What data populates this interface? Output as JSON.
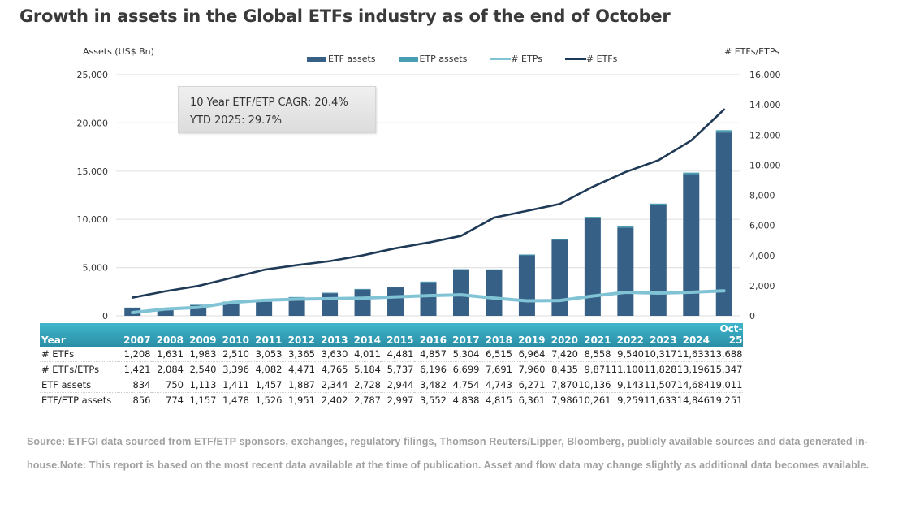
{
  "page": {
    "title": "Growth in assets in the Global ETFs industry as of the end of October",
    "annotation": {
      "line1": "10 Year ETF/ETP CAGR: 20.4%",
      "line2": "YTD 2025: 29.7%"
    },
    "source_text": "Source: ETFGI data sourced from ETF/ETP sponsors, exchanges, regulatory filings, Thomson Reuters/Lipper, Bloomberg, publicly available sources and data generated in-house.Note: This report is based on the most recent data available at the time of publication. Asset and flow data may change slightly as additional data becomes available."
  },
  "colors": {
    "etf_assets": "#376086",
    "etp_assets": "#4a9eb3",
    "etps_line": "#80c3d5",
    "etfs_line": "#1f3a57",
    "table_header": "#3aa9c0",
    "gridline": "#e3e3e3"
  },
  "chart_data": {
    "type": "bar",
    "title": "Growth in assets in the Global ETFs industry as of the end of October",
    "categories": [
      "2007",
      "2008",
      "2009",
      "2010",
      "2011",
      "2012",
      "2013",
      "2014",
      "2015",
      "2016",
      "2017",
      "2018",
      "2019",
      "2020",
      "2021",
      "2022",
      "2023",
      "2024",
      "Oct-25"
    ],
    "ylabel": "Assets (US$ Bn)",
    "y2label": "# ETFs/ETPs",
    "ylim": [
      0,
      25000
    ],
    "y2lim": [
      0,
      16000
    ],
    "yticks": [
      "0",
      "5,000",
      "10,000",
      "15,000",
      "20,000",
      "25,000"
    ],
    "y2ticks": [
      "0",
      "2,000",
      "4,000",
      "6,000",
      "8,000",
      "10,000",
      "12,000",
      "14,000",
      "16,000"
    ],
    "grid": true,
    "legend_position": "top",
    "series": [
      {
        "name": "ETF assets",
        "type": "bar",
        "axis": "left",
        "values": [
          834,
          750,
          1113,
          1411,
          1457,
          1887,
          2344,
          2728,
          2944,
          3482,
          4754,
          4743,
          6271,
          7870,
          10136,
          9143,
          11507,
          14684,
          19011
        ]
      },
      {
        "name": "ETP assets",
        "type": "bar-stacked",
        "axis": "left",
        "values": [
          22,
          24,
          44,
          67,
          69,
          64,
          58,
          59,
          53,
          70,
          84,
          72,
          90,
          116,
          125,
          116,
          126,
          162,
          240
        ]
      },
      {
        "name": "# ETPs",
        "type": "line",
        "axis": "right",
        "values": [
          213,
          453,
          557,
          886,
          1029,
          1106,
          1135,
          1173,
          1256,
          1339,
          1395,
          1176,
          996,
          1015,
          1313,
          1560,
          1511,
          1563,
          1659
        ]
      },
      {
        "name": "# ETFs",
        "type": "line",
        "axis": "right",
        "values": [
          1208,
          1631,
          1983,
          2510,
          3053,
          3365,
          3630,
          4011,
          4481,
          4857,
          5304,
          6515,
          6964,
          7420,
          8558,
          9540,
          10317,
          11633,
          13688
        ]
      }
    ]
  },
  "table": {
    "header_label": "Year",
    "years": [
      "2007",
      "2008",
      "2009",
      "2010",
      "2011",
      "2012",
      "2013",
      "2014",
      "2015",
      "2016",
      "2017",
      "2018",
      "2019",
      "2020",
      "2021",
      "2022",
      "2023",
      "2024",
      "Oct-25"
    ],
    "rows": [
      {
        "label": "# ETFs",
        "values": [
          "1,208",
          "1,631",
          "1,983",
          "2,510",
          "3,053",
          "3,365",
          "3,630",
          "4,011",
          "4,481",
          "4,857",
          "5,304",
          "6,515",
          "6,964",
          "7,420",
          "8,558",
          "9,540",
          "10,317",
          "11,633",
          "13,688"
        ]
      },
      {
        "label": "# ETFs/ETPs",
        "values": [
          "1,421",
          "2,084",
          "2,540",
          "3,396",
          "4,082",
          "4,471",
          "4,765",
          "5,184",
          "5,737",
          "6,196",
          "6,699",
          "7,691",
          "7,960",
          "8,435",
          "9,871",
          "11,100",
          "11,828",
          "13,196",
          "15,347"
        ]
      },
      {
        "label": "ETF assets",
        "values": [
          "834",
          "750",
          "1,113",
          "1,411",
          "1,457",
          "1,887",
          "2,344",
          "2,728",
          "2,944",
          "3,482",
          "4,754",
          "4,743",
          "6,271",
          "7,870",
          "10,136",
          "9,143",
          "11,507",
          "14,684",
          "19,011"
        ]
      },
      {
        "label": "ETF/ETP assets",
        "values": [
          "856",
          "774",
          "1,157",
          "1,478",
          "1,526",
          "1,951",
          "2,402",
          "2,787",
          "2,997",
          "3,552",
          "4,838",
          "4,815",
          "6,361",
          "7,986",
          "10,261",
          "9,259",
          "11,633",
          "14,846",
          "19,251"
        ]
      }
    ]
  }
}
